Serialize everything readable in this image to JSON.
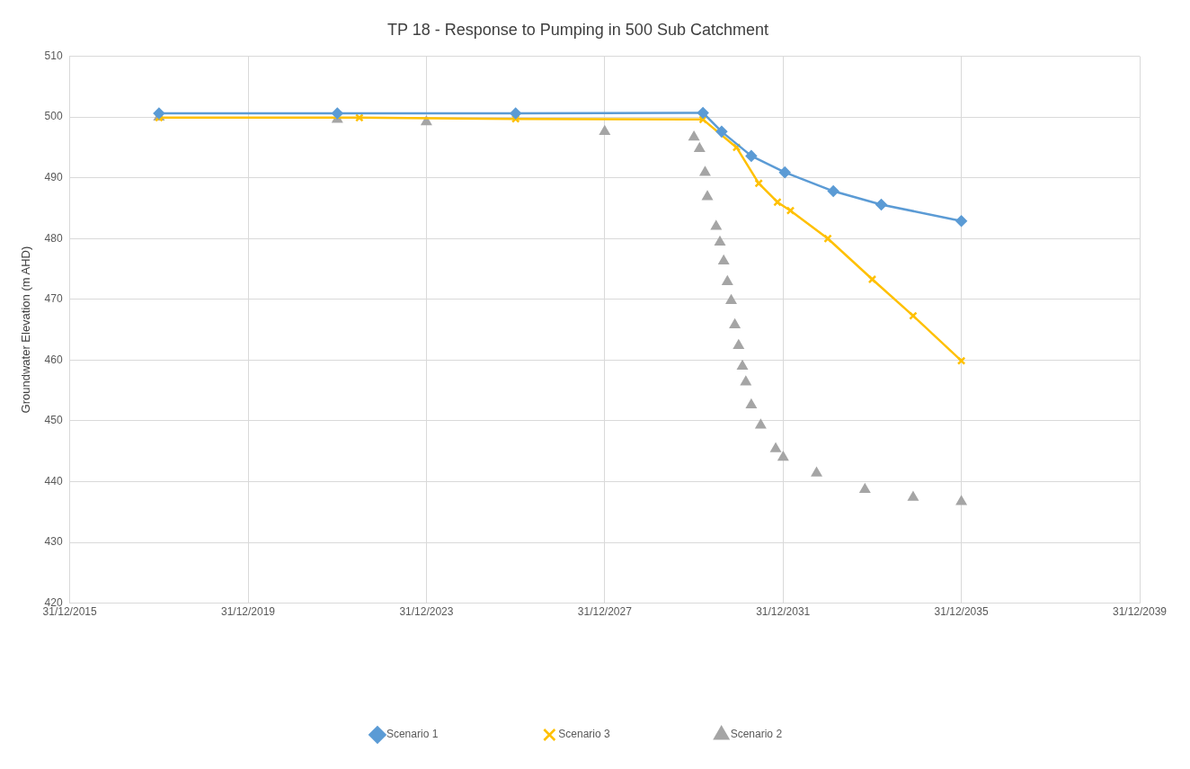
{
  "chart_data": {
    "type": "line",
    "title": "TP 18 - Response to Pumping in 500 Sub Catchment",
    "ylabel": "Groundwater Elevation (m AHD)",
    "xlim": [
      "2015-12-31",
      "2039-12-31"
    ],
    "xticks": [
      {
        "value": "2015-12-31",
        "label": "31/12/2015"
      },
      {
        "value": "2019-12-31",
        "label": "31/12/2019"
      },
      {
        "value": "2023-12-31",
        "label": "31/12/2023"
      },
      {
        "value": "2027-12-31",
        "label": "31/12/2027"
      },
      {
        "value": "2031-12-31",
        "label": "31/12/2031"
      },
      {
        "value": "2035-12-31",
        "label": "31/12/2035"
      },
      {
        "value": "2039-12-31",
        "label": "31/12/2039"
      }
    ],
    "ylim": [
      420,
      510
    ],
    "yticks": [
      420,
      430,
      440,
      450,
      460,
      470,
      480,
      490,
      500,
      510
    ],
    "grid": true,
    "legend": "bottom",
    "series": [
      {
        "name": "Scenario 1",
        "color": "#5b9bd5",
        "marker": "diamond",
        "x": [
          "2017-12-31",
          "2021-12-31",
          "2025-12-31",
          "2030-03-15",
          "2030-08-15",
          "2031-04-15",
          "2032-01-15",
          "2033-02-15",
          "2034-03-15",
          "2035-12-31"
        ],
        "values": [
          500.6,
          500.6,
          500.6,
          500.7,
          497.6,
          493.6,
          490.9,
          487.8,
          485.6,
          482.9
        ]
      },
      {
        "name": "Scenario 2",
        "color": "#a5a5a5",
        "type": "scatter",
        "marker": "triangle",
        "x": [
          "2017-12-31",
          "2021-12-31",
          "2023-12-31",
          "2027-12-31",
          "2029-12-31",
          "2030-02-15",
          "2030-04-01",
          "2030-04-20",
          "2030-07-01",
          "2030-08-01",
          "2030-09-01",
          "2030-10-01",
          "2030-11-01",
          "2030-12-01",
          "2031-01-01",
          "2031-02-01",
          "2031-03-01",
          "2031-04-15",
          "2031-07-01",
          "2031-11-01",
          "2032-01-01",
          "2032-10-01",
          "2033-11-01",
          "2034-12-01",
          "2035-12-31"
        ],
        "values": [
          500,
          499.6,
          499.2,
          497.6,
          496.7,
          494.8,
          490.9,
          486.9,
          482,
          479.4,
          476.3,
          472.9,
          469.8,
          465.8,
          462.4,
          459,
          456.4,
          452.6,
          449.3,
          445.4,
          444,
          441.4,
          438.7,
          437.4,
          436.7
        ]
      },
      {
        "name": "Scenario 3",
        "color": "#ffc000",
        "marker": "cross",
        "x": [
          "2017-12-31",
          "2022-06-30",
          "2025-12-31",
          "2030-03-15",
          "2030-12-15",
          "2031-06-15",
          "2031-11-15",
          "2032-03-01",
          "2033-01-01",
          "2033-12-31",
          "2034-12-01",
          "2035-12-31"
        ],
        "values": [
          499.9,
          499.9,
          499.7,
          499.6,
          495,
          489.1,
          486,
          484.6,
          480,
          473.3,
          467.3,
          459.9
        ]
      }
    ]
  }
}
